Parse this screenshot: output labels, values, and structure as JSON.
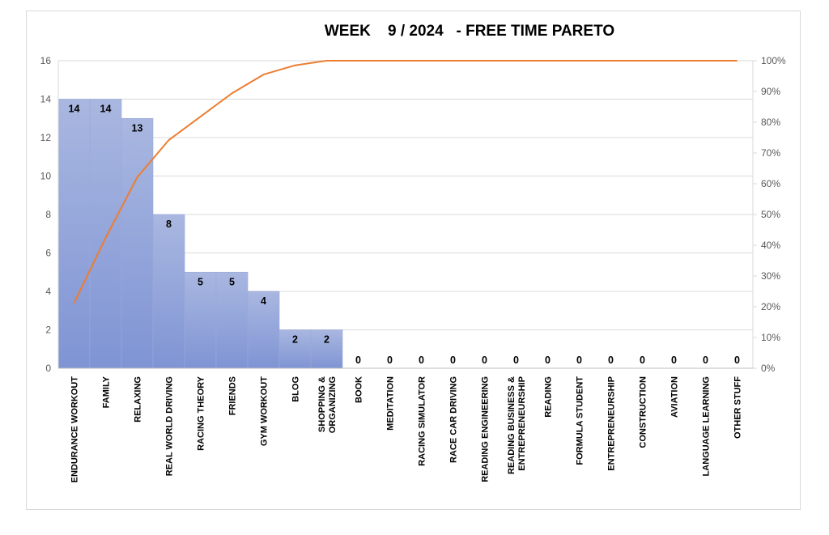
{
  "chart_data": {
    "type": "bar",
    "title": "WEEK    9 / 2024   - FREE TIME PARETO",
    "categories": [
      [
        "ENDURANCE WORKOUT"
      ],
      [
        "FAMILY"
      ],
      [
        "RELAXING"
      ],
      [
        "REAL WORLD DRIVING"
      ],
      [
        "RACING THEORY"
      ],
      [
        "FRIENDS"
      ],
      [
        "GYM WORKOUT"
      ],
      [
        "BLOG"
      ],
      [
        "SHOPPING &",
        "ORGANIZING"
      ],
      [
        "BOOK"
      ],
      [
        "MEDITATION"
      ],
      [
        "RACING SIMULATOR"
      ],
      [
        "RACE CAR DRIVING"
      ],
      [
        "READING ENGINEERING"
      ],
      [
        "READING BUSINESS &",
        "ENTREPRENEURSHIP"
      ],
      [
        "READING"
      ],
      [
        "FORMULA STUDENT"
      ],
      [
        "ENTREPRENEURSHIP"
      ],
      [
        "CONSTRUCTION"
      ],
      [
        "AVIATION"
      ],
      [
        "LANGUAGE LEARNING"
      ],
      [
        "OTHER STUFF"
      ]
    ],
    "values": [
      14,
      14,
      13,
      8,
      5,
      5,
      4,
      2,
      2,
      0,
      0,
      0,
      0,
      0,
      0,
      0,
      0,
      0,
      0,
      0,
      0,
      0
    ],
    "cumulative_percent": [
      21.2,
      42.4,
      62.1,
      74.2,
      81.8,
      89.4,
      95.5,
      98.5,
      100,
      100,
      100,
      100,
      100,
      100,
      100,
      100,
      100,
      100,
      100,
      100,
      100,
      100
    ],
    "y_ticks": [
      "0",
      "2",
      "4",
      "6",
      "8",
      "10",
      "12",
      "14",
      "16"
    ],
    "y2_ticks": [
      "0%",
      "10%",
      "20%",
      "30%",
      "40%",
      "50%",
      "60%",
      "70%",
      "80%",
      "90%",
      "100%"
    ],
    "ylim": [
      0,
      16
    ],
    "y2lim": [
      0,
      100
    ],
    "grid": true,
    "colors": {
      "bar_top": "#a9b7e0",
      "bar_bottom": "#7f94d4",
      "bar_edge": "#9aa9d8",
      "line": "#ed7d31",
      "grid": "#d9d9d9",
      "tick_text": "#595959"
    }
  }
}
